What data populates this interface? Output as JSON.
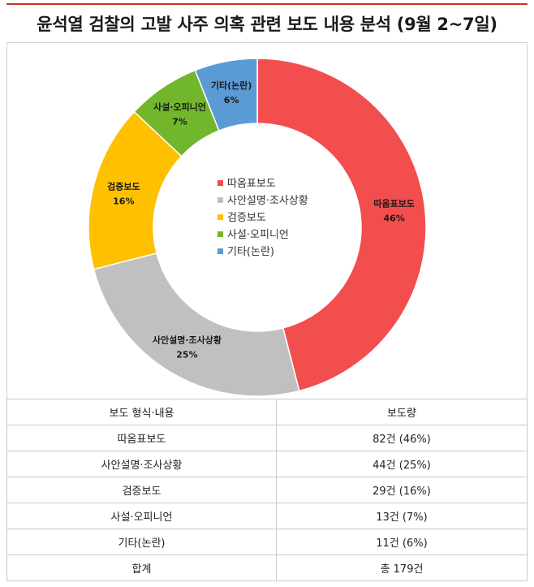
{
  "title": "윤석열 검찰의 고발 사주 의혹 관련 보도 내용 분석 (9월 2~7일)",
  "chart_data": {
    "type": "pie",
    "donut": true,
    "legend_position": "center",
    "slices": [
      {
        "name": "따옴표보도",
        "value": 46,
        "label": "46%",
        "color": "#f24e4e"
      },
      {
        "name": "사안설명·조사상황",
        "value": 25,
        "label": "25%",
        "color": "#c0c0c0"
      },
      {
        "name": "검증보도",
        "value": 16,
        "label": "16%",
        "color": "#ffc000"
      },
      {
        "name": "사설·오피니언",
        "value": 7,
        "label": "7%",
        "color": "#72b62c"
      },
      {
        "name": "기타(논란)",
        "value": 6,
        "label": "6%",
        "color": "#5b9bd5"
      }
    ]
  },
  "table": {
    "headers": [
      "보도 형식·내용",
      "보도량"
    ],
    "rows": [
      [
        "따옴표보도",
        "82건 (46%)"
      ],
      [
        "사안설명·조사상황",
        "44건 (25%)"
      ],
      [
        "검증보도",
        "29건 (16%)"
      ],
      [
        "사설·오피니언",
        "13건 (7%)"
      ],
      [
        "기타(논란)",
        "11건 (6%)"
      ],
      [
        "합계",
        "총 179건"
      ]
    ]
  }
}
